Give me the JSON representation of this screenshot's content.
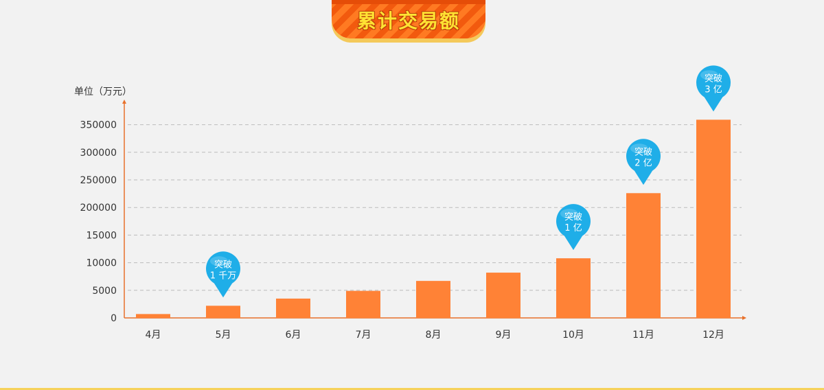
{
  "title": "累计交易额",
  "colors": {
    "bar": "#ff8236",
    "axis": "#e8702a",
    "grid": "#bbbbbb",
    "pin": "#1faee8",
    "title_text": "#ffe233",
    "title_bg": "#ff7a22"
  },
  "chart_data": {
    "type": "bar",
    "ylabel": "单位（万元）",
    "y_ticks": [
      "0",
      "5000",
      "10000",
      "15000",
      "200000",
      "250000",
      "300000",
      "350000"
    ],
    "categories": [
      "4月",
      "5月",
      "6月",
      "7月",
      "8月",
      "9月",
      "10月",
      "11月",
      "12月"
    ],
    "values": [
      700,
      2200,
      3500,
      4900,
      6700,
      8200,
      10800,
      226000,
      359000
    ],
    "grid": true,
    "annotations": [
      {
        "category": "5月",
        "line1": "突破",
        "line2": "1 千万"
      },
      {
        "category": "10月",
        "line1": "突破",
        "line2": "1 亿"
      },
      {
        "category": "11月",
        "line1": "突破",
        "line2": "2 亿"
      },
      {
        "category": "12月",
        "line1": "突破",
        "line2": "3 亿"
      }
    ]
  }
}
